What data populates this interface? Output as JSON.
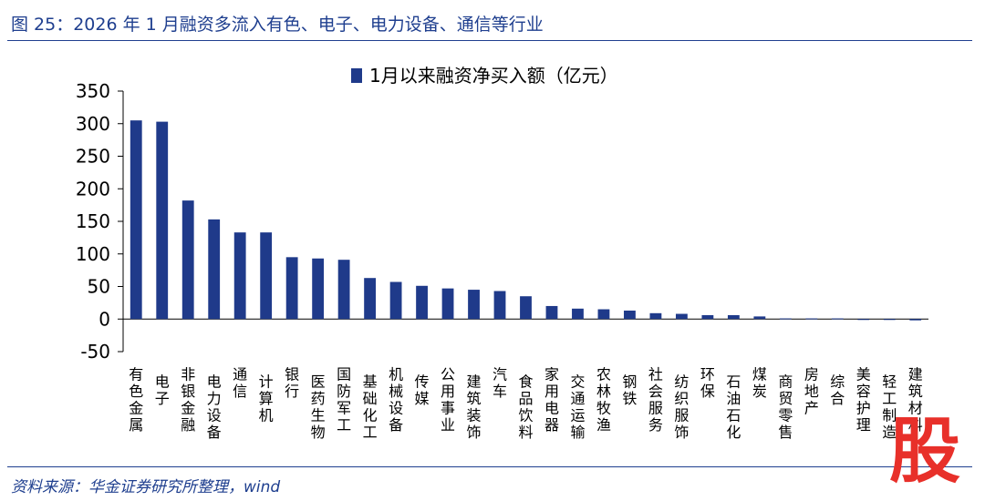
{
  "figure": {
    "title": "图 25：2026 年 1 月融资多流入有色、电子、电力设备、通信等行业",
    "source": "资料来源：华金证券研究所整理，wind",
    "watermark": "股"
  },
  "colors": {
    "bar": "#1f3a8a",
    "text": "#1f3f8f"
  },
  "chart_data": {
    "type": "bar",
    "categories": [
      "有色金属",
      "电子",
      "非银金融",
      "电力设备",
      "通信",
      "计算机",
      "银行",
      "医药生物",
      "国防军工",
      "基础化工",
      "机械设备",
      "传媒",
      "公用事业",
      "建筑装饰",
      "汽车",
      "食品饮料",
      "家用电器",
      "交通运输",
      "农林牧渔",
      "钢铁",
      "社会服务",
      "纺织服饰",
      "环保",
      "石油石化",
      "煤炭",
      "商贸零售",
      "房地产",
      "综合",
      "美容护理",
      "轻工制造",
      "建筑材料"
    ],
    "series": [
      {
        "name": "1月以来融资净买入额（亿元）",
        "values": [
          305,
          303,
          182,
          153,
          133,
          133,
          95,
          93,
          91,
          63,
          57,
          51,
          47,
          45,
          43,
          35,
          20,
          16,
          15,
          13,
          9,
          8,
          6,
          6,
          4,
          1,
          1,
          1,
          -1,
          -1,
          -2
        ]
      }
    ],
    "yticks": [
      350,
      300,
      250,
      200,
      150,
      100,
      50,
      0,
      -50
    ],
    "ylim": [
      -50,
      350
    ],
    "grid": false,
    "legend": "top-center"
  }
}
